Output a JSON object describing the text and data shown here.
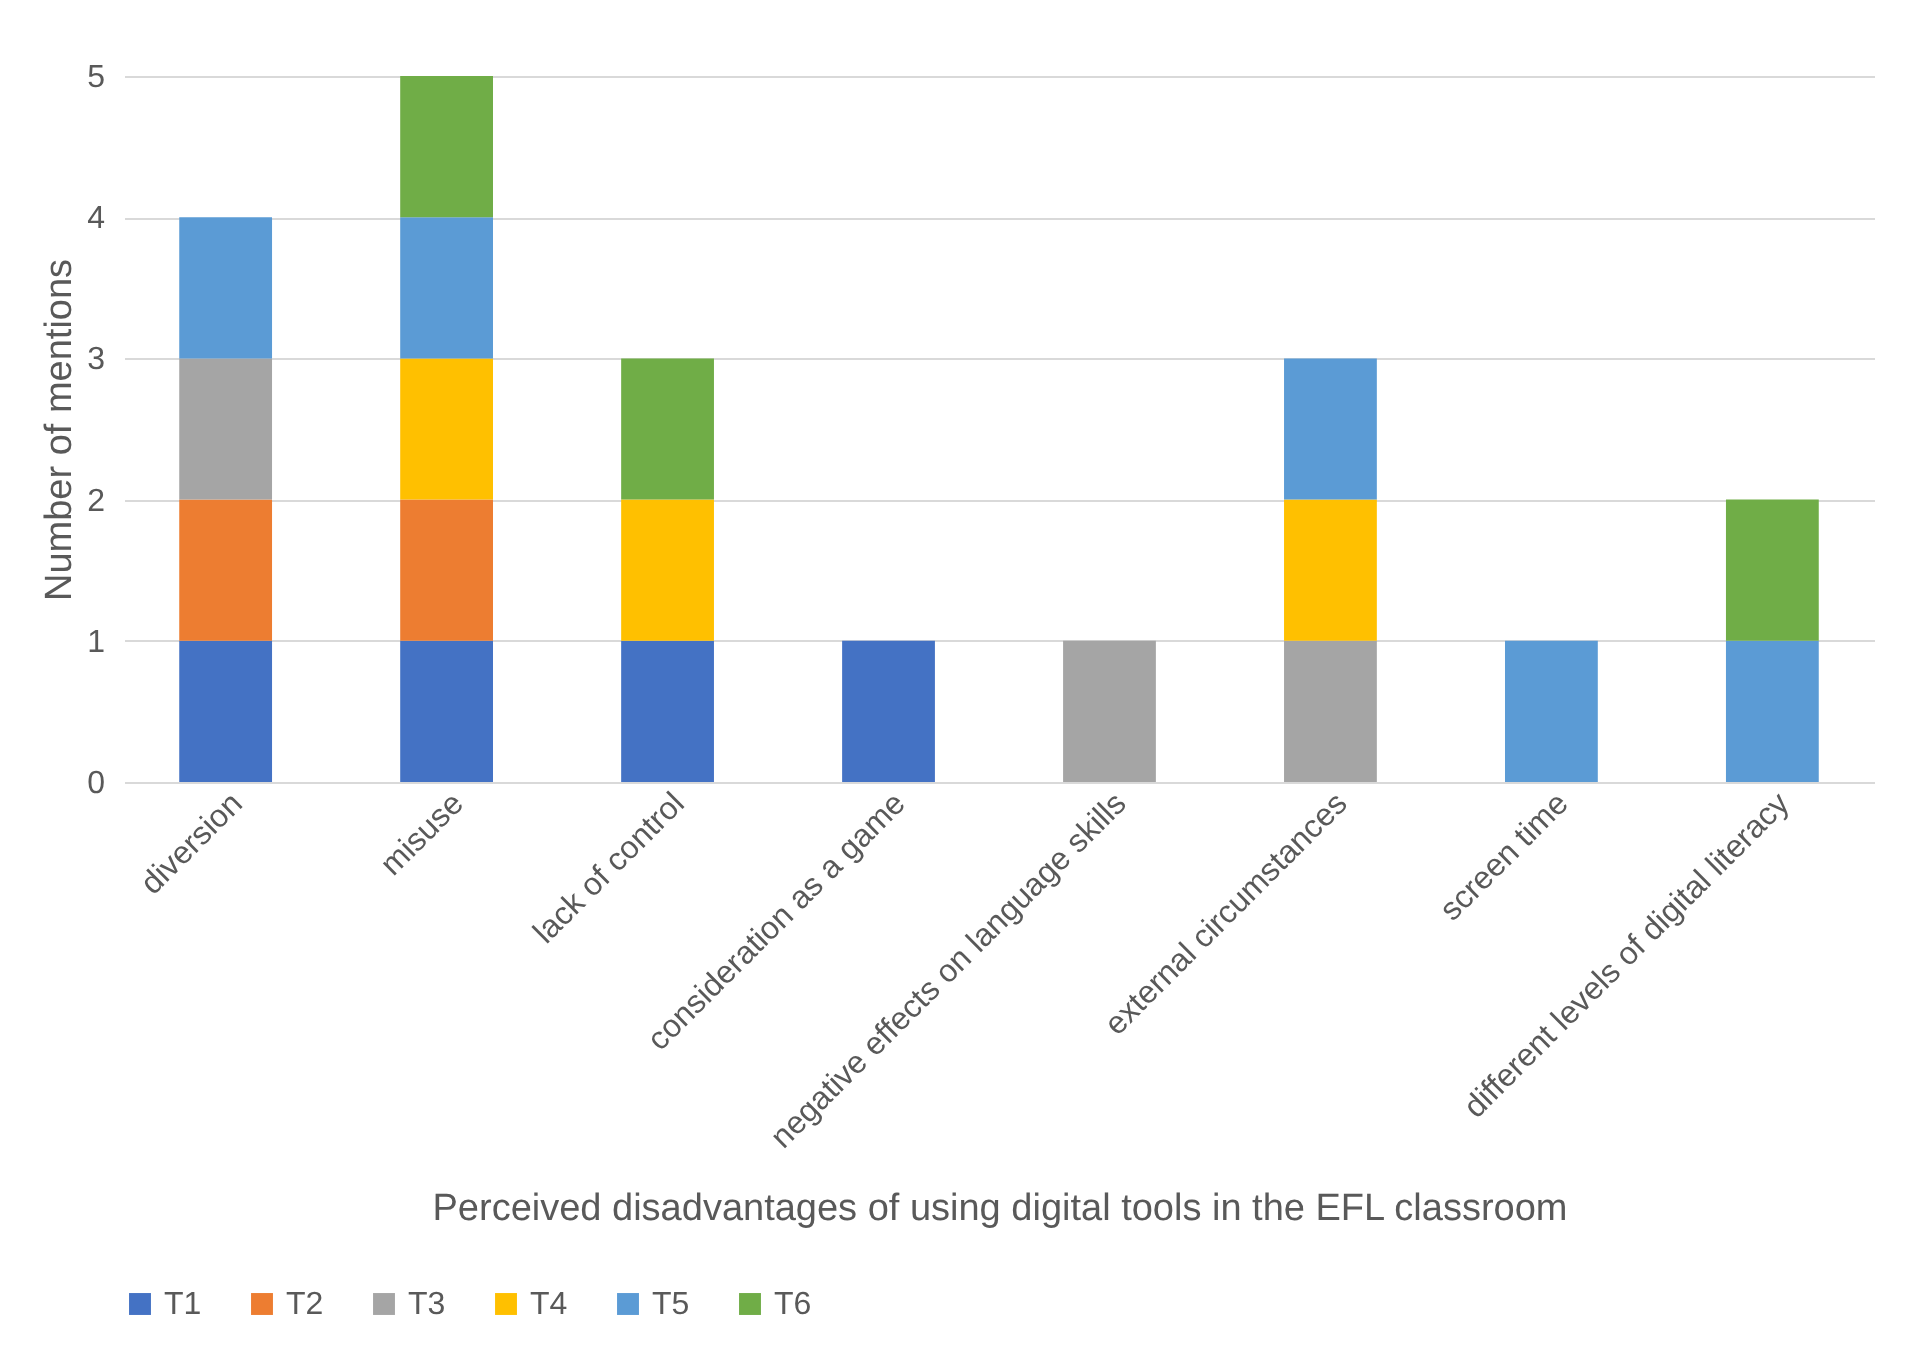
{
  "chart_data": {
    "type": "bar",
    "stacked": true,
    "xlabel": "Perceived disadvantages of using digital tools in the EFL classroom",
    "ylabel": "Number of mentions",
    "categories": [
      "diversion",
      "misuse",
      "lack of control",
      "consideration as a game",
      "negative effects on language skills",
      "external circumstances",
      "screen time",
      "different levels of digital literacy"
    ],
    "series": [
      {
        "name": "T1",
        "color": "#4472c4",
        "values": [
          1,
          1,
          1,
          1,
          null,
          null,
          null,
          null
        ]
      },
      {
        "name": "T2",
        "color": "#ed7d31",
        "values": [
          1,
          1,
          null,
          null,
          null,
          null,
          null,
          null
        ]
      },
      {
        "name": "T3",
        "color": "#a5a5a5",
        "values": [
          1,
          null,
          null,
          null,
          1,
          1,
          null,
          null
        ]
      },
      {
        "name": "T4",
        "color": "#ffc000",
        "values": [
          null,
          1,
          1,
          null,
          null,
          1,
          null,
          null
        ]
      },
      {
        "name": "T5",
        "color": "#5b9bd5",
        "values": [
          1,
          1,
          null,
          null,
          null,
          1,
          1,
          1
        ]
      },
      {
        "name": "T6",
        "color": "#70ad47",
        "values": [
          null,
          1,
          1,
          null,
          null,
          null,
          null,
          1
        ]
      }
    ],
    "ylim": [
      0,
      5
    ],
    "yticks": [
      0,
      1,
      2,
      3,
      4,
      5
    ],
    "grid": "y",
    "legend": "bottom"
  }
}
